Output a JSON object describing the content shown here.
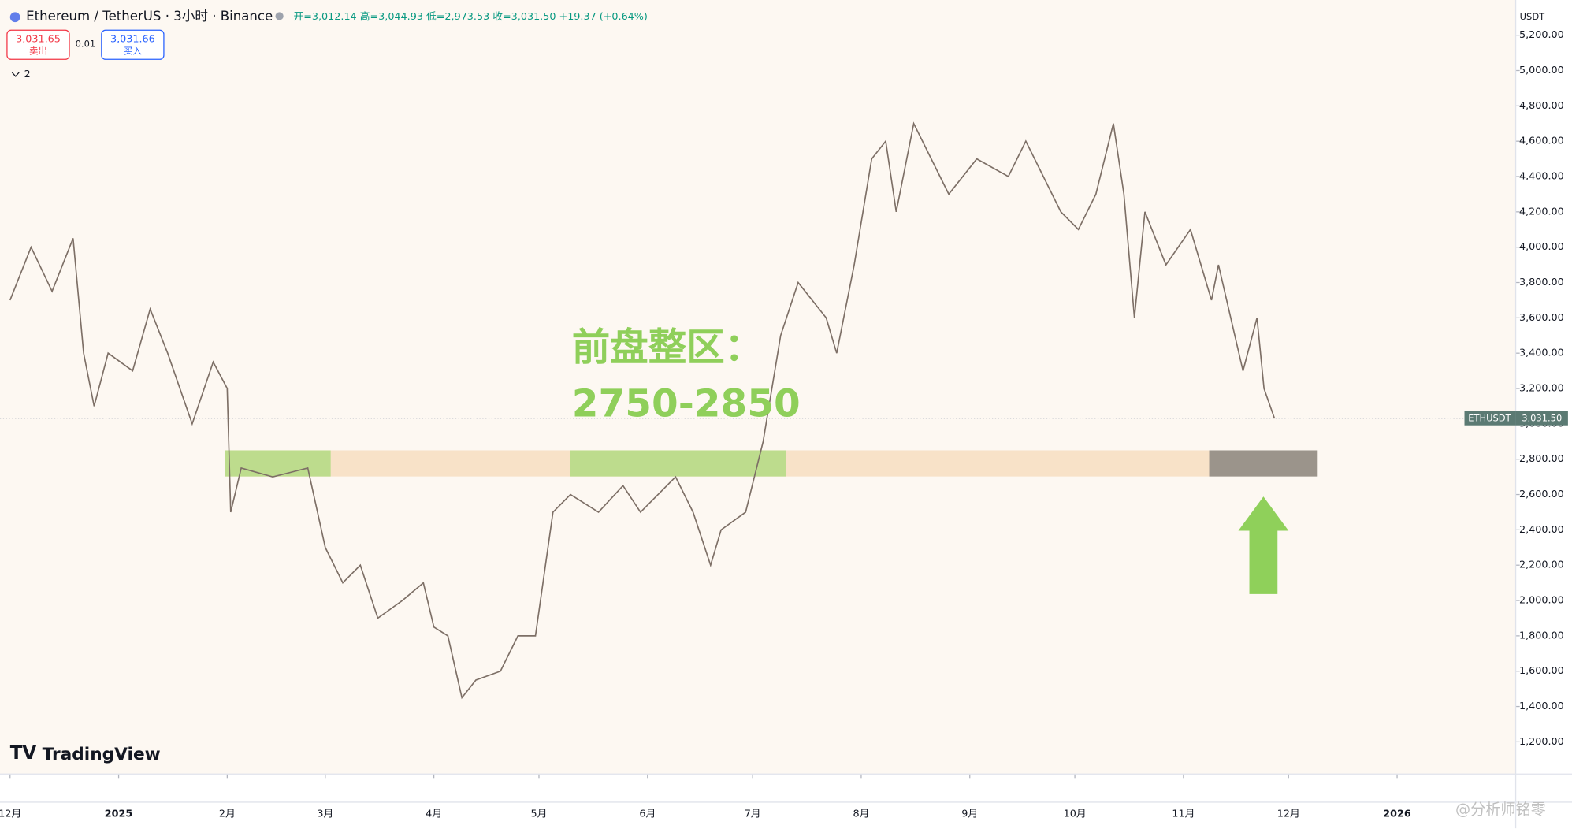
{
  "chart_data": {
    "type": "line",
    "title": "Ethereum / TetherUS · 3小时 · Binance",
    "ohlc": "开=3,012.14 高=3,044.93 低=2,973.53 收=3,031.50 +19.37 (+0.64%)",
    "sell_price": "3,031.65",
    "sell_label": "卖出",
    "spread": "0.01",
    "buy_price": "3,031.66",
    "buy_label": "买入",
    "indicators_count": "2",
    "currency": "USDT",
    "annotation": [
      "前盘整区：",
      "2750-2850"
    ],
    "price_tag": {
      "symbol": "ETHUSDT",
      "value": 3031.5,
      "label": "3,031.50"
    },
    "brand": "TradingView",
    "watermark": "@分析师铭零",
    "xlim": [
      -3,
      446
    ],
    "xticks": [
      {
        "value": 0,
        "label": "12月"
      },
      {
        "value": 31,
        "label": "2025"
      },
      {
        "value": 62,
        "label": "2月"
      },
      {
        "value": 90,
        "label": "3月"
      },
      {
        "value": 121,
        "label": "4月"
      },
      {
        "value": 151,
        "label": "5月"
      },
      {
        "value": 182,
        "label": "6月"
      },
      {
        "value": 212,
        "label": "7月"
      },
      {
        "value": 243,
        "label": "8月"
      },
      {
        "value": 274,
        "label": "9月"
      },
      {
        "value": 304,
        "label": "10月"
      },
      {
        "value": 335,
        "label": "11月"
      },
      {
        "value": 365,
        "label": "12月"
      },
      {
        "value": 396,
        "label": "2026"
      }
    ],
    "ylim": [
      1200,
      5200
    ],
    "yticks": [
      {
        "value": 1200,
        "label": "1,200.00"
      },
      {
        "value": 1400,
        "label": "1,400.00"
      },
      {
        "value": 1600,
        "label": "1,600.00"
      },
      {
        "value": 1800,
        "label": "1,800.00"
      },
      {
        "value": 2000,
        "label": "2,000.00"
      },
      {
        "value": 2200,
        "label": "2,200.00"
      },
      {
        "value": 2400,
        "label": "2,400.00"
      },
      {
        "value": 2600,
        "label": "2,600.00"
      },
      {
        "value": 2800,
        "label": "2,800.00"
      },
      {
        "value": 3000,
        "label": "3,000.00"
      },
      {
        "value": 3200,
        "label": "3,200.00"
      },
      {
        "value": 3400,
        "label": "3,400.00"
      },
      {
        "value": 3600,
        "label": "3,600.00"
      },
      {
        "value": 3800,
        "label": "3,800.00"
      },
      {
        "value": 4000,
        "label": "4,000.00"
      },
      {
        "value": 4200,
        "label": "4,200.00"
      },
      {
        "value": 4400,
        "label": "4,400.00"
      },
      {
        "value": 4600,
        "label": "4,600.00"
      },
      {
        "value": 4800,
        "label": "4,800.00"
      },
      {
        "value": 5000,
        "label": "5,000.00"
      },
      {
        "value": 5200,
        "label": "5,200.00"
      }
    ],
    "series": [
      {
        "name": "ETHUSDT",
        "color": "#7d6f66",
        "x": [
          0,
          6,
          12,
          18,
          21,
          24,
          28,
          35,
          40,
          45,
          52,
          58,
          62,
          63,
          66,
          75,
          85,
          90,
          95,
          100,
          105,
          112,
          118,
          121,
          125,
          129,
          133,
          140,
          145,
          150,
          155,
          160,
          168,
          175,
          180,
          190,
          195,
          200,
          203,
          210,
          215,
          220,
          225,
          233,
          236,
          241,
          246,
          250,
          253,
          258,
          263,
          268,
          276,
          285,
          290,
          295,
          300,
          305,
          310,
          315,
          318,
          321,
          324,
          330,
          337,
          343,
          345,
          352,
          356,
          358,
          361
        ],
        "values": [
          3700,
          4000,
          3750,
          4050,
          3400,
          3100,
          3400,
          3300,
          3650,
          3400,
          3000,
          3350,
          3200,
          2500,
          2750,
          2700,
          2750,
          2300,
          2100,
          2200,
          1900,
          2000,
          2100,
          1850,
          1800,
          1450,
          1550,
          1600,
          1800,
          1800,
          2500,
          2600,
          2500,
          2650,
          2500,
          2700,
          2500,
          2200,
          2400,
          2500,
          2900,
          3500,
          3800,
          3600,
          3400,
          3900,
          4500,
          4600,
          4200,
          4700,
          4500,
          4300,
          4500,
          4400,
          4600,
          4400,
          4200,
          4100,
          4300,
          4700,
          4300,
          3600,
          4200,
          3900,
          4100,
          3700,
          3900,
          3300,
          3600,
          3200,
          3030
        ]
      }
    ]
  }
}
